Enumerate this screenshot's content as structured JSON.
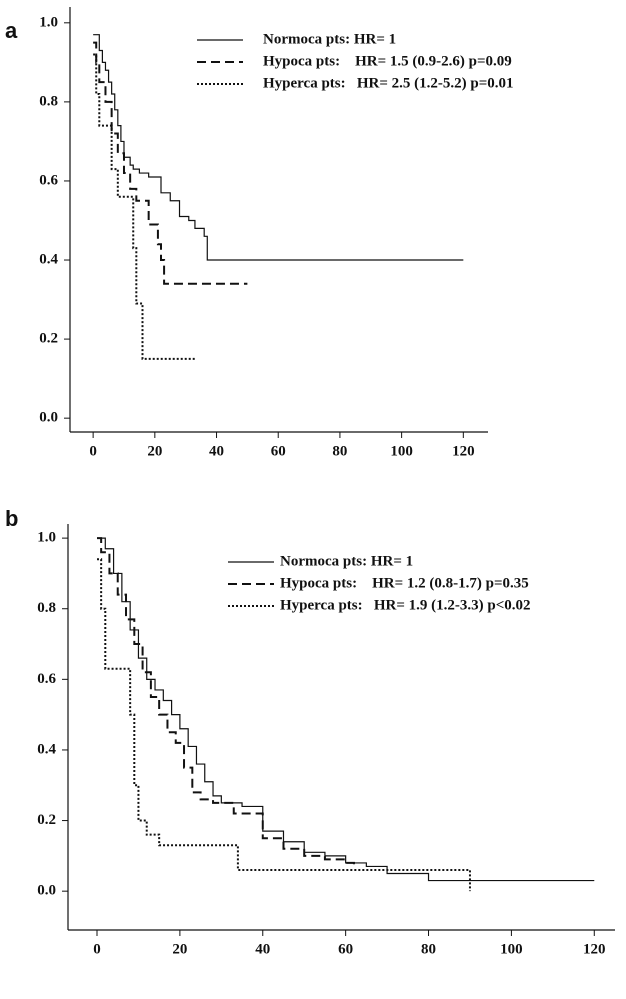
{
  "chart_data": [
    {
      "type": "line",
      "panel_label": "a",
      "step": true,
      "xlim": [
        -7.5,
        128
      ],
      "ylim": [
        -0.035,
        1.04
      ],
      "xticks": [
        0,
        20,
        40,
        60,
        80,
        100,
        120
      ],
      "yticks": [
        {
          "value": 0,
          "label": "0.0"
        },
        0.2,
        0.4,
        0.6,
        0.8,
        {
          "value": 1,
          "label": "1.0"
        }
      ],
      "series": [
        {
          "name": "Normoca pts: HR= 1",
          "color": "#111",
          "dash": "solid",
          "x": [
            0,
            2,
            3,
            4,
            5,
            6,
            7,
            8,
            9,
            10,
            12,
            13,
            15,
            18,
            22,
            25,
            28,
            31,
            33,
            36,
            37,
            120
          ],
          "values": [
            0.97,
            0.93,
            0.9,
            0.88,
            0.85,
            0.82,
            0.78,
            0.74,
            0.7,
            0.66,
            0.64,
            0.63,
            0.62,
            0.61,
            0.57,
            0.55,
            0.51,
            0.5,
            0.48,
            0.46,
            0.4,
            0.4
          ]
        },
        {
          "name": "Hypoca pts:    HR= 1.5 (0.9-2.6) p=0.09",
          "color": "#111",
          "dash": "dashed",
          "x": [
            0,
            1,
            2,
            4,
            6,
            8,
            10,
            12,
            14,
            18,
            21,
            22,
            23,
            50
          ],
          "values": [
            0.95,
            0.9,
            0.85,
            0.8,
            0.72,
            0.67,
            0.62,
            0.58,
            0.55,
            0.49,
            0.44,
            0.4,
            0.34,
            0.34
          ]
        },
        {
          "name": "Hyperca pts:   HR= 2.5 (1.2-5.2) p=0.01",
          "color": "#111",
          "dash": "dotted",
          "x": [
            0,
            1,
            2,
            6,
            8,
            13,
            14,
            16,
            33
          ],
          "values": [
            0.92,
            0.82,
            0.74,
            0.63,
            0.56,
            0.43,
            0.29,
            0.15,
            0.15
          ]
        }
      ]
    },
    {
      "type": "line",
      "panel_label": "b",
      "step": true,
      "xlim": [
        -7,
        125
      ],
      "ylim": [
        -0.11,
        1.04
      ],
      "xticks": [
        0,
        20,
        40,
        60,
        80,
        100,
        120
      ],
      "yticks": [
        {
          "value": 0,
          "label": "0.0"
        },
        0.2,
        0.4,
        0.6,
        0.8,
        {
          "value": 1,
          "label": "1.0"
        }
      ],
      "series": [
        {
          "name": "Normoca pts: HR= 1",
          "color": "#111",
          "dash": "solid",
          "x": [
            0,
            2,
            4,
            6,
            8,
            10,
            12,
            14,
            16,
            18,
            20,
            22,
            24,
            26,
            28,
            30,
            35,
            40,
            45,
            50,
            55,
            60,
            65,
            70,
            80,
            120
          ],
          "values": [
            1.0,
            0.97,
            0.9,
            0.82,
            0.74,
            0.66,
            0.6,
            0.57,
            0.54,
            0.5,
            0.46,
            0.41,
            0.36,
            0.31,
            0.27,
            0.25,
            0.24,
            0.17,
            0.14,
            0.11,
            0.1,
            0.08,
            0.07,
            0.05,
            0.03,
            0.03
          ]
        },
        {
          "name": "Hypoca pts:    HR= 1.2 (0.8-1.7) p=0.35",
          "color": "#111",
          "dash": "dashed",
          "x": [
            0,
            1,
            3,
            5,
            7,
            9,
            11,
            13,
            15,
            17,
            19,
            21,
            23,
            25,
            28,
            33,
            40,
            45,
            50,
            55,
            60,
            62
          ],
          "values": [
            1.0,
            0.96,
            0.9,
            0.84,
            0.77,
            0.7,
            0.62,
            0.55,
            0.5,
            0.45,
            0.42,
            0.35,
            0.28,
            0.26,
            0.25,
            0.22,
            0.15,
            0.12,
            0.1,
            0.09,
            0.08,
            0.07
          ]
        },
        {
          "name": "Hyperca pts:   HR= 1.9 (1.2-3.3) p<0.02",
          "color": "#111",
          "dash": "dotted",
          "x": [
            0,
            1,
            2,
            8,
            9,
            10,
            12,
            15,
            34,
            90
          ],
          "values": [
            0.94,
            0.8,
            0.63,
            0.5,
            0.3,
            0.2,
            0.16,
            0.13,
            0.06,
            0
          ]
        }
      ]
    }
  ]
}
